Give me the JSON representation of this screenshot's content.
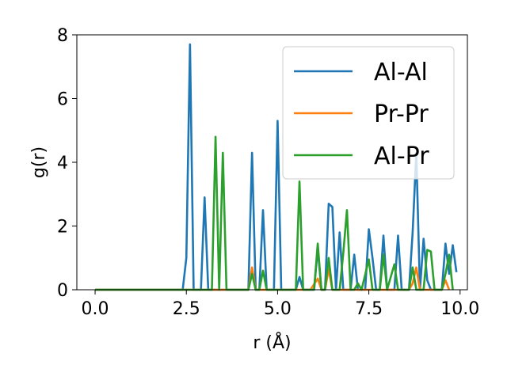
{
  "chart_data": {
    "type": "line",
    "title": "",
    "xlabel": "r (Å)",
    "ylabel": "g(r)",
    "xlim": [
      -0.5,
      10.2
    ],
    "ylim": [
      0,
      8
    ],
    "xticks": [
      0.0,
      2.5,
      5.0,
      7.5,
      10.0
    ],
    "xtick_labels": [
      "0.0",
      "2.5",
      "5.0",
      "7.5",
      "10.0"
    ],
    "yticks": [
      0,
      2,
      4,
      6,
      8
    ],
    "ytick_labels": [
      "0",
      "2",
      "4",
      "6",
      "8"
    ],
    "grid": false,
    "legend_position": "top-right",
    "series": [
      {
        "name": "Al-Al",
        "color": "#1f77b4",
        "points": [
          [
            0.0,
            0
          ],
          [
            2.4,
            0
          ],
          [
            2.5,
            1.0
          ],
          [
            2.6,
            7.7
          ],
          [
            2.7,
            0
          ],
          [
            2.9,
            0
          ],
          [
            3.0,
            2.9
          ],
          [
            3.1,
            0
          ],
          [
            4.2,
            0
          ],
          [
            4.3,
            4.3
          ],
          [
            4.4,
            0
          ],
          [
            4.5,
            0
          ],
          [
            4.6,
            2.5
          ],
          [
            4.7,
            0
          ],
          [
            4.9,
            0
          ],
          [
            5.0,
            5.3
          ],
          [
            5.1,
            0
          ],
          [
            5.5,
            0
          ],
          [
            5.6,
            0.4
          ],
          [
            5.7,
            0
          ],
          [
            6.0,
            0
          ],
          [
            6.1,
            1.3
          ],
          [
            6.2,
            0
          ],
          [
            6.3,
            0
          ],
          [
            6.4,
            2.7
          ],
          [
            6.5,
            2.6
          ],
          [
            6.6,
            0
          ],
          [
            6.7,
            1.8
          ],
          [
            6.8,
            0
          ],
          [
            7.0,
            0
          ],
          [
            7.1,
            1.1
          ],
          [
            7.2,
            0
          ],
          [
            7.4,
            0
          ],
          [
            7.5,
            1.9
          ],
          [
            7.6,
            1.0
          ],
          [
            7.7,
            0
          ],
          [
            7.8,
            0
          ],
          [
            7.9,
            1.7
          ],
          [
            8.0,
            0
          ],
          [
            8.2,
            0
          ],
          [
            8.3,
            1.7
          ],
          [
            8.4,
            0
          ],
          [
            8.6,
            0
          ],
          [
            8.7,
            1.8
          ],
          [
            8.8,
            4.3
          ],
          [
            8.9,
            0
          ],
          [
            9.0,
            1.6
          ],
          [
            9.1,
            0.3
          ],
          [
            9.2,
            0
          ],
          [
            9.5,
            0
          ],
          [
            9.6,
            1.45
          ],
          [
            9.7,
            0.5
          ],
          [
            9.8,
            1.4
          ],
          [
            9.9,
            0.55
          ]
        ]
      },
      {
        "name": "Pr-Pr",
        "color": "#ff7f0e",
        "points": [
          [
            0.0,
            0
          ],
          [
            4.2,
            0
          ],
          [
            4.3,
            0.7
          ],
          [
            4.4,
            0
          ],
          [
            5.9,
            0
          ],
          [
            6.1,
            0.35
          ],
          [
            6.2,
            0
          ],
          [
            6.3,
            0
          ],
          [
            6.4,
            0.65
          ],
          [
            6.5,
            0
          ],
          [
            8.6,
            0
          ],
          [
            8.7,
            0.2
          ],
          [
            8.8,
            0.7
          ],
          [
            8.9,
            0
          ],
          [
            9.5,
            0
          ],
          [
            9.6,
            0.3
          ],
          [
            9.7,
            0
          ]
        ]
      },
      {
        "name": "Al-Pr",
        "color": "#2ca02c",
        "points": [
          [
            0.0,
            0
          ],
          [
            3.2,
            0
          ],
          [
            3.3,
            4.8
          ],
          [
            3.4,
            0
          ],
          [
            3.5,
            4.3
          ],
          [
            3.6,
            0
          ],
          [
            4.2,
            0
          ],
          [
            4.3,
            0.5
          ],
          [
            4.4,
            0
          ],
          [
            4.5,
            0
          ],
          [
            4.6,
            0.6
          ],
          [
            4.7,
            0
          ],
          [
            5.5,
            0
          ],
          [
            5.6,
            3.4
          ],
          [
            5.7,
            0
          ],
          [
            6.0,
            0
          ],
          [
            6.1,
            1.45
          ],
          [
            6.2,
            0
          ],
          [
            6.3,
            0
          ],
          [
            6.4,
            1.0
          ],
          [
            6.5,
            0
          ],
          [
            6.7,
            0
          ],
          [
            6.8,
            1.15
          ],
          [
            6.9,
            2.5
          ],
          [
            7.0,
            0
          ],
          [
            7.1,
            0
          ],
          [
            7.2,
            0.2
          ],
          [
            7.3,
            0
          ],
          [
            7.5,
            0.95
          ],
          [
            7.6,
            0
          ],
          [
            7.8,
            0
          ],
          [
            7.9,
            1.1
          ],
          [
            8.0,
            0
          ],
          [
            8.2,
            0.8
          ],
          [
            8.3,
            0
          ],
          [
            8.6,
            0
          ],
          [
            8.7,
            0.7
          ],
          [
            8.8,
            0
          ],
          [
            9.0,
            0
          ],
          [
            9.1,
            1.25
          ],
          [
            9.2,
            1.2
          ],
          [
            9.3,
            0
          ],
          [
            9.5,
            0
          ],
          [
            9.6,
            0.5
          ],
          [
            9.7,
            1.1
          ],
          [
            9.8,
            0
          ]
        ]
      }
    ]
  }
}
